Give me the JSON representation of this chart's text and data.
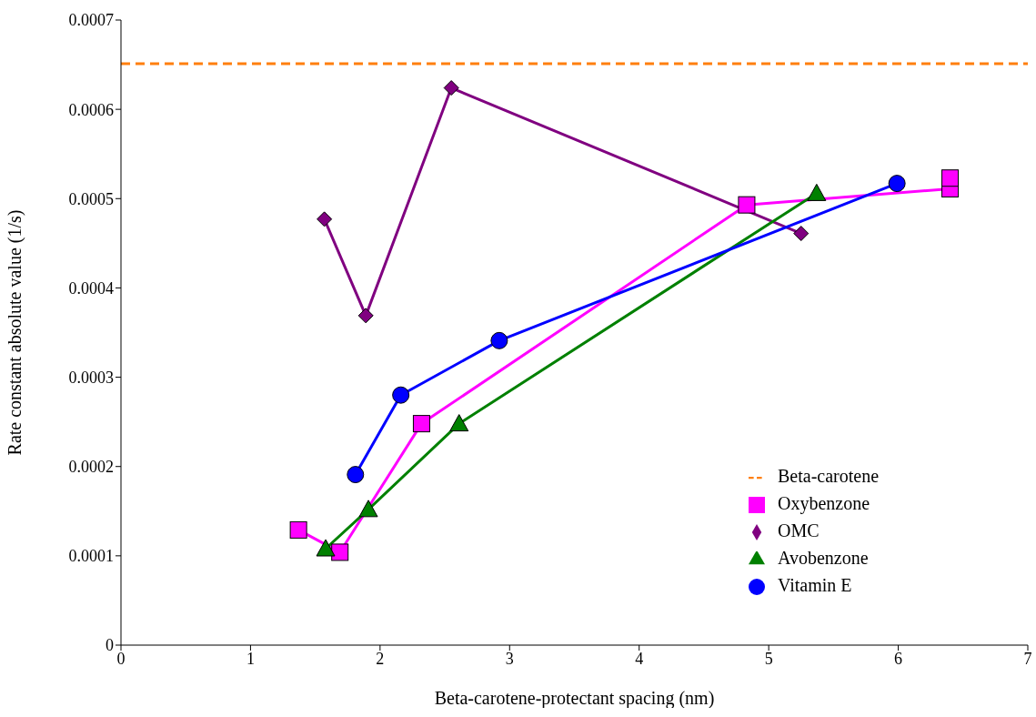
{
  "chart_data": {
    "type": "line",
    "xlabel": "Beta-carotene-protectant spacing (nm)",
    "ylabel": "Rate constant absolute value (1/s)",
    "xlim": [
      0,
      7
    ],
    "xticks": [
      0,
      1,
      2,
      3,
      4,
      5,
      6,
      7
    ],
    "ylim": [
      0,
      0.0007
    ],
    "yticks": [
      0,
      0.0001,
      0.0002,
      0.0003,
      0.0004,
      0.0005,
      0.0006,
      0.0007
    ],
    "grid": false,
    "legend": "bottom right",
    "series": [
      {
        "name": "Beta-carotene",
        "color": "#ff7f0e",
        "line_style": "dashed",
        "marker": "none",
        "x": [
          0,
          7
        ],
        "values": [
          0.000651,
          0.000651
        ]
      },
      {
        "name": "Oxybenzone",
        "color": "#ff00ff",
        "marker": "square",
        "x": [
          1.37,
          1.69,
          2.32,
          4.83,
          6.4,
          6.4
        ],
        "values": [
          0.000129,
          0.000104,
          0.000248,
          0.000493,
          0.000511,
          0.000523
        ]
      },
      {
        "name": "OMC",
        "color": "#800080",
        "marker": "diamond",
        "x": [
          1.57,
          1.89,
          2.55,
          5.25
        ],
        "values": [
          0.000477,
          0.000369,
          0.000624,
          0.000461
        ]
      },
      {
        "name": "Avobenzone",
        "color": "#008000",
        "marker": "triangle",
        "x": [
          1.58,
          1.91,
          2.61,
          5.37
        ],
        "values": [
          0.000108,
          0.000152,
          0.000248,
          0.000506
        ]
      },
      {
        "name": "Vitamin E",
        "color": "#0000ff",
        "marker": "circle",
        "x": [
          1.81,
          2.16,
          2.92,
          5.99
        ],
        "values": [
          0.000191,
          0.00028,
          0.000341,
          0.000517
        ]
      }
    ]
  }
}
